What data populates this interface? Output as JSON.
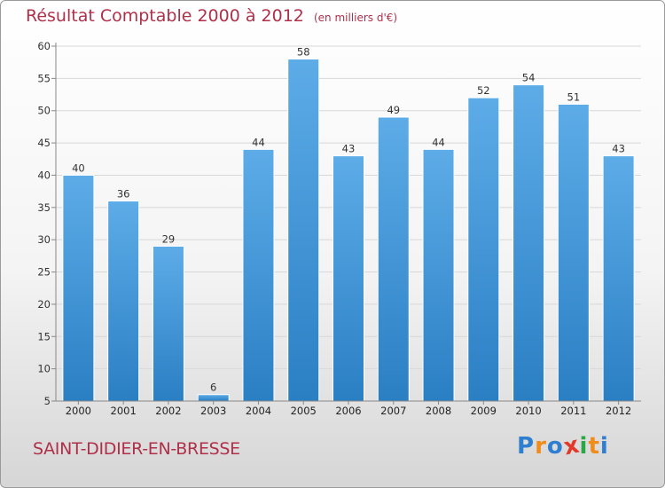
{
  "colors": {
    "title": "#b0304a",
    "bar_top": "#5dace8",
    "bar_bottom": "#2a7fc3",
    "grid": "#d8d8d8",
    "axis": "#888888"
  },
  "chart_data": {
    "type": "bar",
    "title": "Résultat Comptable 2000 à 2012",
    "subtitle": "(en milliers d'€)",
    "categories": [
      "2000",
      "2001",
      "2002",
      "2003",
      "2004",
      "2005",
      "2006",
      "2007",
      "2008",
      "2009",
      "2010",
      "2011",
      "2012"
    ],
    "values": [
      40,
      36,
      29,
      6,
      44,
      58,
      43,
      49,
      44,
      52,
      54,
      51,
      43
    ],
    "ylim": [
      5,
      60
    ],
    "yticks": [
      5,
      10,
      15,
      20,
      25,
      30,
      35,
      40,
      45,
      50,
      55,
      60
    ],
    "grid": true,
    "xlabel": "",
    "ylabel": ""
  },
  "footer": {
    "place": "SAINT-DIDIER-EN-BRESSE",
    "logo_letters": [
      {
        "char": "P",
        "color": "#2f7fd0"
      },
      {
        "char": "r",
        "color": "#f08c1a"
      },
      {
        "char": "o",
        "color": "#2f7fd0"
      },
      {
        "char": "x",
        "color": "#e23a2a"
      },
      {
        "char": "i",
        "color": "#2aa845"
      },
      {
        "char": "t",
        "color": "#f08c1a"
      },
      {
        "char": "i",
        "color": "#2f7fd0"
      }
    ]
  }
}
